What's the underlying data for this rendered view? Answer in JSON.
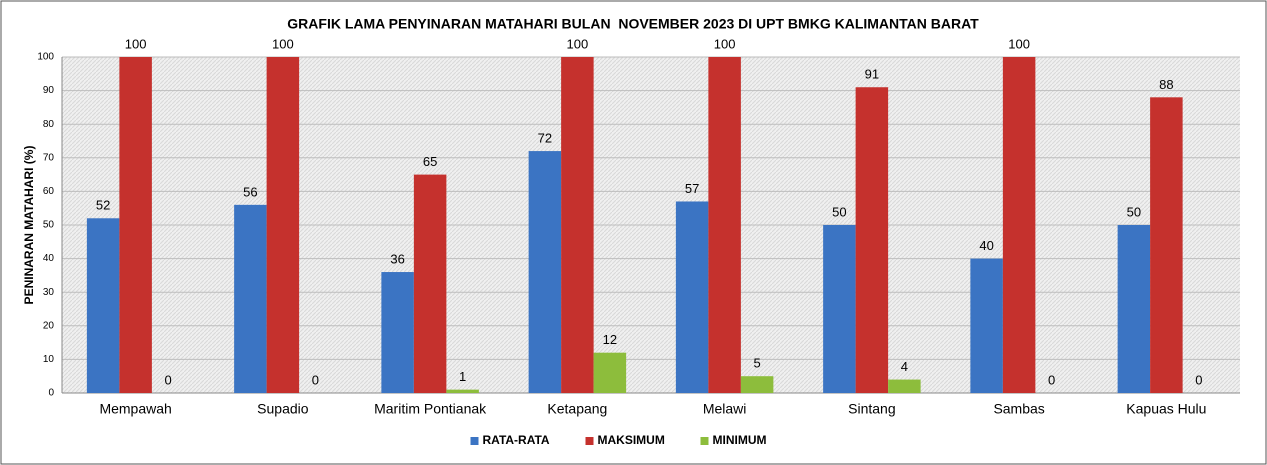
{
  "chart_data": {
    "type": "bar",
    "title": "GRAFIK LAMA PENYINARAN MATAHARI BULAN  NOVEMBER 2023 DI UPT BMKG KALIMANTAN BARAT",
    "y_label": "PENINARAN MATAHARI (%)",
    "categories": [
      "Mempawah",
      "Supadio",
      "Maritim Pontianak",
      "Ketapang",
      "Melawi",
      "Sintang",
      "Sambas",
      "Kapuas Hulu"
    ],
    "series": [
      {
        "name": "RATA-RATA",
        "color": "#3b74c3",
        "values": [
          52,
          56,
          36,
          72,
          57,
          50,
          40,
          50
        ]
      },
      {
        "name": "MAKSIMUM",
        "color": "#c5312d",
        "values": [
          100,
          100,
          65,
          100,
          100,
          91,
          100,
          88
        ]
      },
      {
        "name": "MINIMUM",
        "color": "#8dbd3c",
        "values": [
          0,
          0,
          1,
          12,
          5,
          4,
          0,
          0
        ]
      }
    ],
    "ylim": [
      0,
      100
    ],
    "yticks": [
      0,
      10,
      20,
      30,
      40,
      50,
      60,
      70,
      80,
      90,
      100
    ],
    "grid": true,
    "legend": "bottom"
  }
}
